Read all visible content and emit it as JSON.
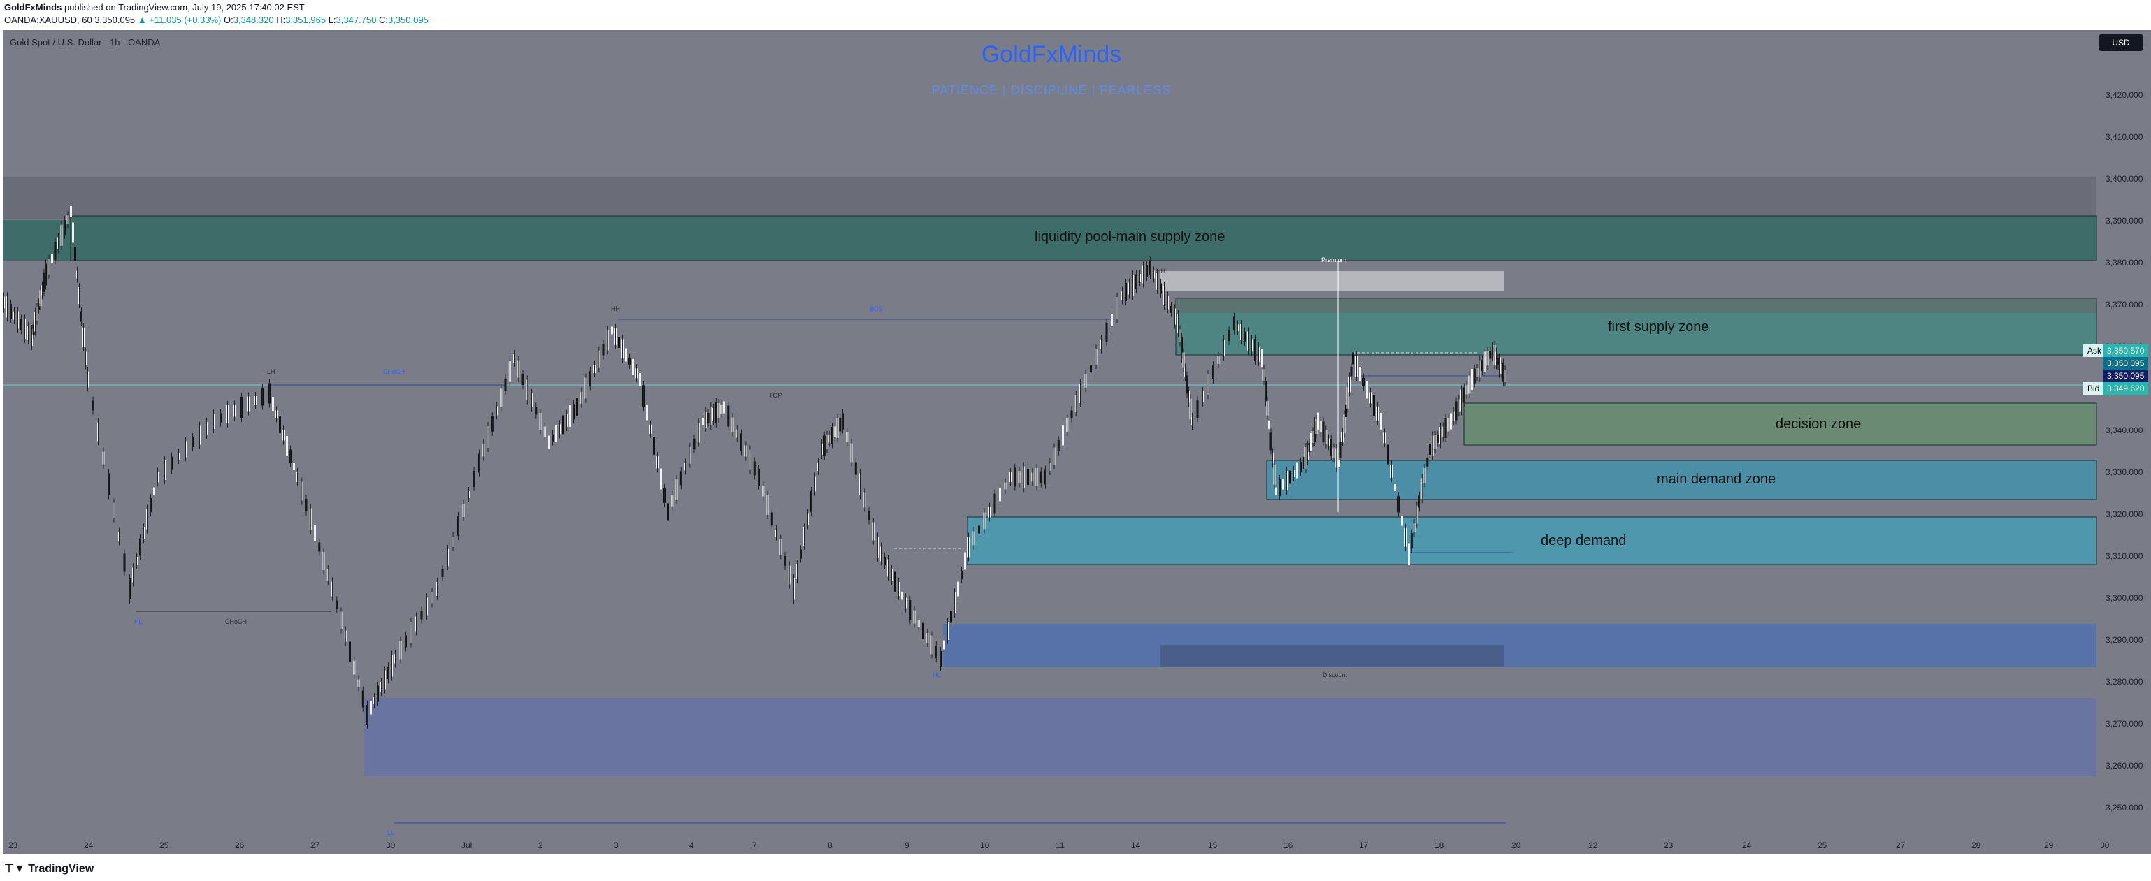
{
  "header": {
    "publisher": "GoldFxMinds",
    "published_text": "published on TradingView.com, July 19, 2025 17:40:02 EST",
    "symbol_line_prefix": "OANDA:XAUUSD, 60",
    "last": "3,350.095",
    "change": "▲ +11.035 (+0.33%)",
    "o_label": "O:",
    "o_value": "3,348.320",
    "h_label": "H:",
    "h_value": "3,351.965",
    "l_label": "L:",
    "l_value": "3,347.750",
    "c_label": "C:",
    "c_value": "3,350.095"
  },
  "chart": {
    "symbol_description": "Gold Spot / U.S. Dollar · 1h · OANDA",
    "currency": "USD",
    "brand_title": "GoldFxMinds",
    "motto": "PATIENCE   |   DISCIPLINE   |   FEARLESS",
    "zones": {
      "liquidity": "liquidity pool-main supply zone",
      "first_supply": "first supply zone",
      "decision": "decision zone",
      "main_demand": "main demand zone",
      "deep_demand": "deep demand"
    },
    "markers": {
      "premium": "Premium",
      "discount": "Discount",
      "bos": "BOS",
      "choch": "CHoCH",
      "hh": "HH",
      "lh": "LH",
      "hl": "HL",
      "top": "TOP",
      "ll": "LL"
    },
    "price_scale": [
      "3,420.000",
      "3,410.000",
      "3,400.000",
      "3,390.000",
      "3,380.000",
      "3,370.000",
      "3,360.000",
      "3,350.000",
      "3,340.000",
      "3,330.000",
      "3,320.000",
      "3,310.000",
      "3,300.000",
      "3,290.000",
      "3,280.000",
      "3,270.000",
      "3,260.000",
      "3,250.000"
    ],
    "price_tags": {
      "ask_label": "Ask",
      "ask_value": "3,350.570",
      "last_value": "3,350.095",
      "last_value2": "3,350.095",
      "bid_label": "Bid",
      "bid_value": "3,349.620"
    },
    "time_scale": [
      "23",
      "24",
      "25",
      "26",
      "27",
      "30",
      "Jul",
      "2",
      "3",
      "4",
      "7",
      "8",
      "9",
      "10",
      "11",
      "14",
      "15",
      "16",
      "17",
      "18",
      "20",
      "22",
      "23",
      "24",
      "25",
      "27",
      "28",
      "29",
      "30"
    ],
    "colors": {
      "background": "#7a7d88",
      "liquidity_zone": "#3e6d69",
      "supply_zone": "#4e8482",
      "decision_zone": "#6a8a74",
      "main_demand_zone": "#4c8ea5",
      "deep_demand_zone": "#4f97ad",
      "blue_zone": "#5672a8",
      "brand": "#2962ff"
    }
  },
  "footer": {
    "logo": "TradingView"
  }
}
